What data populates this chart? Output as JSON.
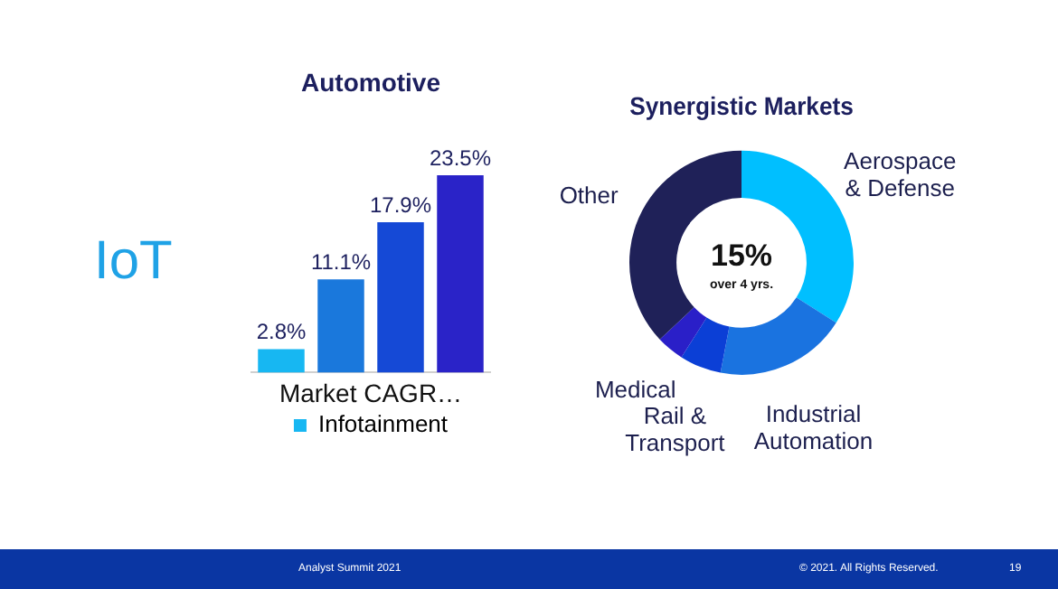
{
  "chart_data": [
    {
      "type": "bar",
      "title": "Automotive",
      "xlabel": "Market CAGR…",
      "categories": [
        null,
        null,
        null,
        null
      ],
      "series": [
        {
          "name": "Infotainment",
          "colors": [
            "#17b7f2",
            "#1a78dc",
            "#1549d6",
            "#2a23c8"
          ],
          "values": [
            2.8,
            11.1,
            17.9,
            23.5
          ],
          "value_labels": [
            "2.8%",
            "11.1%",
            "17.9%",
            "23.5%"
          ]
        }
      ],
      "legend": "bottom",
      "annotations": [
        "IoT",
        "Analyst Summit 2021"
      ]
    },
    {
      "type": "donut",
      "title": "Synergistic Markets",
      "categories": [
        "Aerospace & Defense",
        "Industrial Automation",
        "Rail & Transport",
        "Medical",
        "Other"
      ],
      "values": [
        34,
        19,
        6,
        4,
        37
      ],
      "colors": [
        "#00bfff",
        "#1a73e0",
        "#0b3fd6",
        "#2a1fc8",
        "#1f2158"
      ],
      "annotations": [
        "15%",
        "over 4 yrs.",
        "© 2021. All Rights Reserved.",
        "19"
      ]
    }
  ]
}
